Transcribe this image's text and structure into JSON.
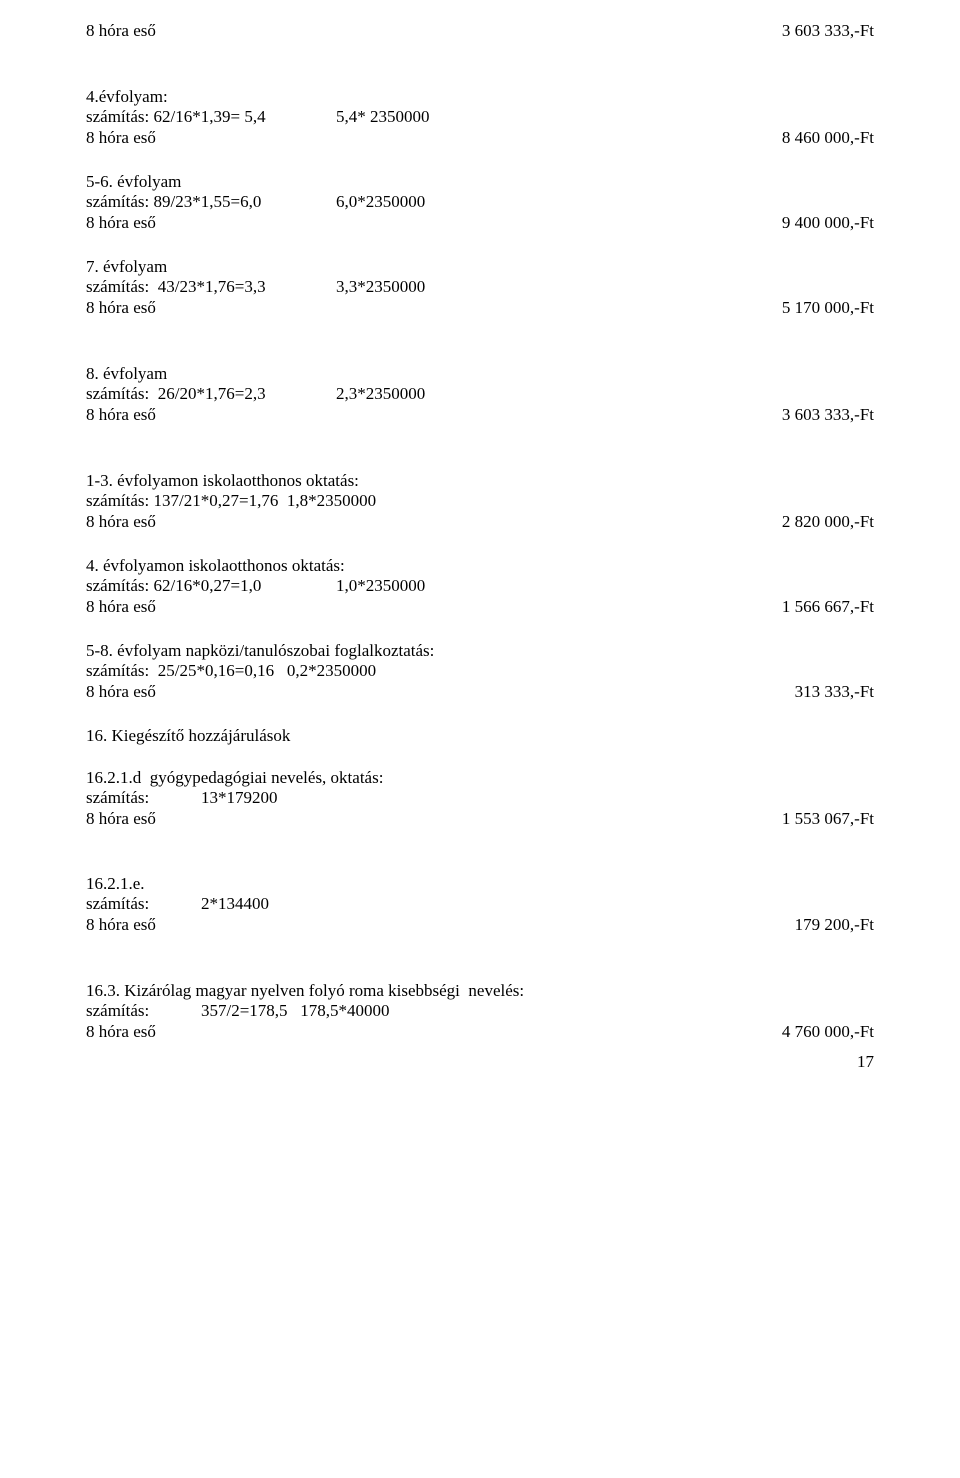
{
  "rows": [
    {
      "type": "row",
      "left": "8 hóra eső",
      "right": "3 603 333,-Ft"
    },
    {
      "type": "gap",
      "size": "large"
    },
    {
      "type": "line",
      "text": "4.évfolyam:"
    },
    {
      "type": "tabline",
      "a": "számítás: 62/16*1,39= 5,4",
      "b": "5,4* 2350000"
    },
    {
      "type": "row",
      "left": "8 hóra eső",
      "right": "8 460 000,-Ft"
    },
    {
      "type": "gap",
      "size": "med"
    },
    {
      "type": "line",
      "text": "5-6. évfolyam"
    },
    {
      "type": "tabline",
      "a": "számítás: 89/23*1,55=6,0",
      "b": "6,0*2350000"
    },
    {
      "type": "row",
      "left": "8 hóra eső",
      "right": "9 400 000,-Ft"
    },
    {
      "type": "gap",
      "size": "med"
    },
    {
      "type": "line",
      "text": "7. évfolyam"
    },
    {
      "type": "tabline",
      "a": "számítás:  43/23*1,76=3,3",
      "b": "3,3*2350000"
    },
    {
      "type": "row",
      "left": "8 hóra eső",
      "right": "5 170 000,-Ft"
    },
    {
      "type": "gap",
      "size": "large"
    },
    {
      "type": "line",
      "text": "8. évfolyam"
    },
    {
      "type": "tabline",
      "a": "számítás:  26/20*1,76=2,3",
      "b": "2,3*2350000"
    },
    {
      "type": "row",
      "left": "8 hóra eső",
      "right": "3 603 333,-Ft"
    },
    {
      "type": "gap",
      "size": "large"
    },
    {
      "type": "line",
      "text": "1-3. évfolyamon iskolaotthonos oktatás:"
    },
    {
      "type": "line",
      "text": "számítás: 137/21*0,27=1,76  1,8*2350000"
    },
    {
      "type": "row",
      "left": "8 hóra eső",
      "right": "2 820 000,-Ft"
    },
    {
      "type": "gap",
      "size": "med"
    },
    {
      "type": "line",
      "text": "4. évfolyamon iskolaotthonos oktatás:"
    },
    {
      "type": "tabline",
      "a": "számítás: 62/16*0,27=1,0",
      "b": "1,0*2350000"
    },
    {
      "type": "row",
      "left": "8 hóra eső",
      "right": "1 566 667,-Ft"
    },
    {
      "type": "gap",
      "size": "med"
    },
    {
      "type": "line",
      "text": "5-8. évfolyam napközi/tanulószobai foglalkoztatás:"
    },
    {
      "type": "line",
      "text": "számítás:  25/25*0,16=0,16   0,2*2350000"
    },
    {
      "type": "row",
      "left": "8 hóra eső",
      "right": " 313 333,-Ft"
    },
    {
      "type": "gap",
      "size": "med"
    },
    {
      "type": "line",
      "text": "16. Kiegészítő hozzájárulások"
    },
    {
      "type": "gap",
      "size": "med"
    },
    {
      "type": "line",
      "text": "16.2.1.d  gyógypedagógiai nevelés, oktatás:"
    },
    {
      "type": "tabline2",
      "a": "számítás:",
      "b": "13*179200"
    },
    {
      "type": "row",
      "left": "8 hóra eső",
      "right": "1 553 067,-Ft"
    },
    {
      "type": "gap",
      "size": "large"
    },
    {
      "type": "line",
      "text": "16.2.1.e."
    },
    {
      "type": "tabline2",
      "a": "számítás:",
      "b": "2*134400"
    },
    {
      "type": "row",
      "left": "8 hóra eső",
      "right": "179 200,-Ft"
    },
    {
      "type": "gap",
      "size": "large"
    },
    {
      "type": "line",
      "text": "16.3. Kizárólag magyar nyelven folyó roma kisebbségi  nevelés:"
    },
    {
      "type": "tabline2b",
      "a": "számítás:",
      "b": "357/2=178,5   178,5*40000"
    },
    {
      "type": "row",
      "left": "8 hóra eső",
      "right": "4 760 000,-Ft"
    }
  ],
  "page_number": "17"
}
